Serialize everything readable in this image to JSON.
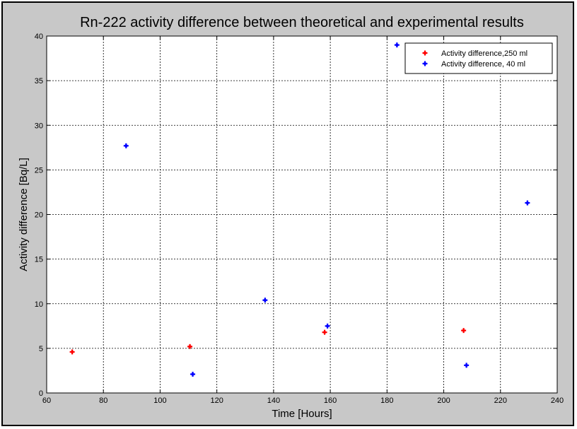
{
  "chart_data": {
    "type": "scatter",
    "title": "Rn-222 activity difference between theoretical and experimental results",
    "xlabel": "Time [Hours]",
    "ylabel": "Activity difference [Bq/L]",
    "xlim": [
      60,
      240
    ],
    "ylim": [
      0,
      40
    ],
    "xticks": [
      60,
      80,
      100,
      120,
      140,
      160,
      180,
      200,
      220,
      240
    ],
    "yticks": [
      0,
      5,
      10,
      15,
      20,
      25,
      30,
      35,
      40
    ],
    "grid": true,
    "legend_position": "top-right",
    "series": [
      {
        "name": "Activity difference,250 ml",
        "color": "#ff0000",
        "x": [
          69,
          110.5,
          158,
          207
        ],
        "y": [
          4.6,
          5.2,
          6.8,
          7.0
        ]
      },
      {
        "name": "Activity difference, 40 ml",
        "color": "#0000ff",
        "x": [
          88,
          111.5,
          137,
          159,
          183.5,
          208,
          229.5
        ],
        "y": [
          27.7,
          2.1,
          10.4,
          7.5,
          39.0,
          3.1,
          21.3
        ]
      }
    ]
  }
}
